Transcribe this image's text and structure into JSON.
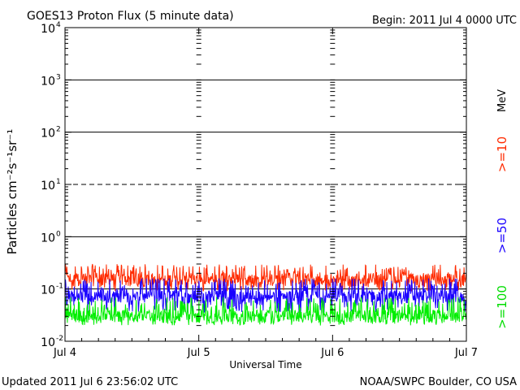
{
  "header": {
    "title": "GOES13 Proton Flux (5 minute data)",
    "begin": "Begin: 2011 Jul 4 0000 UTC"
  },
  "footer": {
    "updated": "Updated 2011 Jul  6 23:56:02 UTC",
    "credit": "NOAA/SWPC Boulder, CO USA"
  },
  "colors": {
    "ge10": "#ff2a00",
    "ge50": "#1a00ff",
    "ge100": "#00ee00",
    "threshold": "#000000"
  },
  "chart_data": {
    "type": "line",
    "title": "GOES13 Proton Flux (5 minute data)",
    "xlabel": "Universal Time",
    "ylabel": "Particles cm⁻²s⁻¹sr⁻¹",
    "y_scale": "log",
    "ylim": [
      0.01,
      10000
    ],
    "y_ticks": [
      {
        "value": 0.01,
        "base": "10",
        "exp": "-2"
      },
      {
        "value": 0.1,
        "base": "10",
        "exp": "-1"
      },
      {
        "value": 1,
        "base": "10",
        "exp": "0"
      },
      {
        "value": 10,
        "base": "10",
        "exp": "1"
      },
      {
        "value": 100,
        "base": "10",
        "exp": "2"
      },
      {
        "value": 1000,
        "base": "10",
        "exp": "3"
      },
      {
        "value": 10000,
        "base": "10",
        "exp": "4"
      }
    ],
    "x_range": [
      "2011-07-04 00:00",
      "2011-07-07 00:00"
    ],
    "x_ticks": [
      "Jul 4",
      "Jul 5",
      "Jul 6",
      "Jul 7"
    ],
    "threshold_dashed": 10,
    "grid": "solid horizontal lines at each decade, dashed line at 10^1",
    "series_unit": "MeV",
    "series": [
      {
        "name": ">=10",
        "color": "#ff2a00",
        "approx_range": [
          0.09,
          0.3
        ],
        "typical": 0.15
      },
      {
        "name": ">=50",
        "color": "#1a00ff",
        "approx_range": [
          0.035,
          0.16
        ],
        "typical": 0.07
      },
      {
        "name": ">=100",
        "color": "#00ee00",
        "approx_range": [
          0.02,
          0.07
        ],
        "typical": 0.03
      }
    ]
  }
}
